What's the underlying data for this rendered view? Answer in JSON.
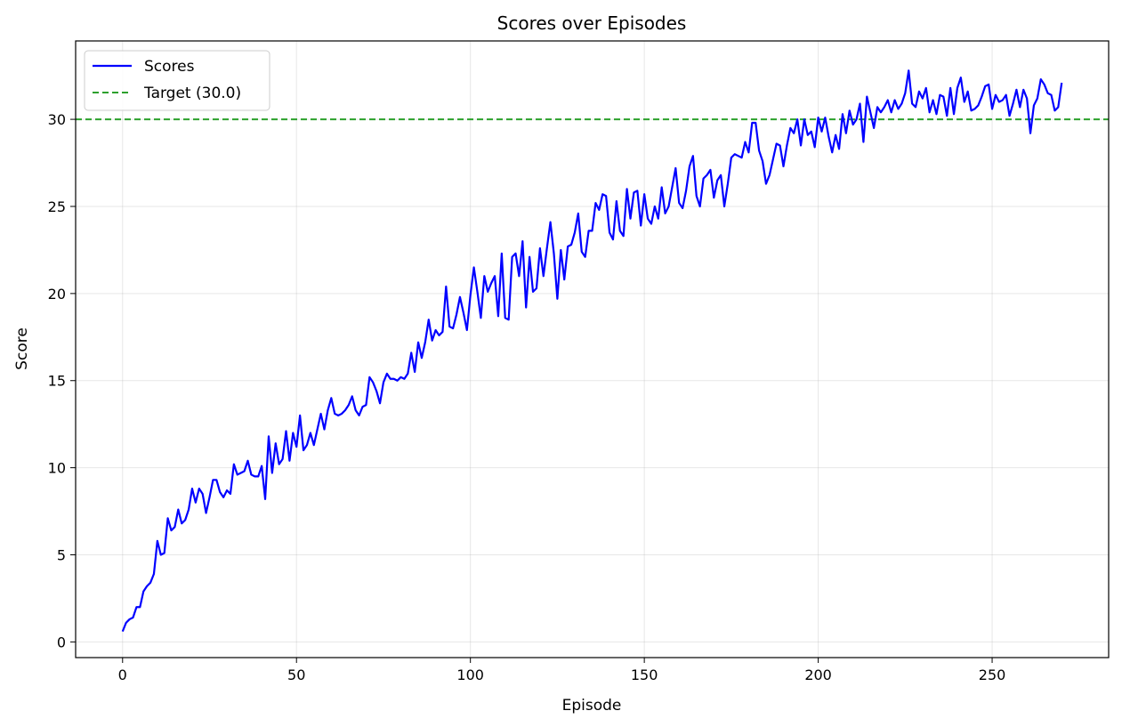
{
  "chart_data": {
    "type": "line",
    "title": "Scores over Episodes",
    "xlabel": "Episode",
    "ylabel": "Score",
    "xlim": [
      -13.5,
      283.5
    ],
    "ylim": [
      -0.9,
      34.5
    ],
    "xticks": [
      0,
      50,
      100,
      150,
      200,
      250
    ],
    "yticks": [
      0,
      5,
      10,
      15,
      20,
      25,
      30
    ],
    "grid": true,
    "legend_position": "upper-left",
    "series": [
      {
        "name": "Scores",
        "color": "#0000ff",
        "x_start": 0,
        "values": [
          0.6,
          1.1,
          1.3,
          1.4,
          2.0,
          2.0,
          2.9,
          3.2,
          3.4,
          3.9,
          5.8,
          5.0,
          5.1,
          7.1,
          6.4,
          6.6,
          7.6,
          6.8,
          7.0,
          7.6,
          8.8,
          8.0,
          8.8,
          8.5,
          7.4,
          8.3,
          9.3,
          9.3,
          8.6,
          8.3,
          8.7,
          8.5,
          10.2,
          9.6,
          9.7,
          9.8,
          10.4,
          9.6,
          9.5,
          9.5,
          10.1,
          8.2,
          11.8,
          9.7,
          11.4,
          10.2,
          10.5,
          12.1,
          10.4,
          12.0,
          11.2,
          13.0,
          11.0,
          11.3,
          12.0,
          11.3,
          12.2,
          13.1,
          12.2,
          13.3,
          14.0,
          13.1,
          13.0,
          13.1,
          13.3,
          13.6,
          14.1,
          13.3,
          13.0,
          13.5,
          13.6,
          15.2,
          14.9,
          14.4,
          13.7,
          14.9,
          15.4,
          15.1,
          15.1,
          15.0,
          15.2,
          15.1,
          15.4,
          16.6,
          15.5,
          17.2,
          16.3,
          17.2,
          18.5,
          17.3,
          17.9,
          17.6,
          17.8,
          20.4,
          18.1,
          18.0,
          18.8,
          19.8,
          18.9,
          17.9,
          19.9,
          21.5,
          20.1,
          18.6,
          21.0,
          20.1,
          20.6,
          21.0,
          18.7,
          22.3,
          18.6,
          18.5,
          22.1,
          22.3,
          21.0,
          23.0,
          19.2,
          22.1,
          20.1,
          20.3,
          22.6,
          21.0,
          22.6,
          24.1,
          22.3,
          19.7,
          22.5,
          20.8,
          22.7,
          22.8,
          23.5,
          24.6,
          22.4,
          22.1,
          23.6,
          23.6,
          25.2,
          24.8,
          25.7,
          25.6,
          23.5,
          23.1,
          25.3,
          23.6,
          23.3,
          26.0,
          24.3,
          25.8,
          25.9,
          23.9,
          25.7,
          24.3,
          24.0,
          25.0,
          24.3,
          26.1,
          24.6,
          25.0,
          26.1,
          27.2,
          25.2,
          24.9,
          25.9,
          27.3,
          27.9,
          25.6,
          25.0,
          26.6,
          26.8,
          27.1,
          25.5,
          26.5,
          26.8,
          25.0,
          26.3,
          27.8,
          28.0,
          27.9,
          27.8,
          28.7,
          28.1,
          29.8,
          29.8,
          28.2,
          27.6,
          26.3,
          26.8,
          27.7,
          28.6,
          28.5,
          27.3,
          28.5,
          29.5,
          29.2,
          30.0,
          28.5,
          30.0,
          29.1,
          29.3,
          28.4,
          30.1,
          29.3,
          30.1,
          29.0,
          28.1,
          29.1,
          28.3,
          30.3,
          29.2,
          30.5,
          29.7,
          30.0,
          30.9,
          28.7,
          31.3,
          30.4,
          29.5,
          30.7,
          30.4,
          30.7,
          31.1,
          30.4,
          31.1,
          30.6,
          30.9,
          31.5,
          32.8,
          30.9,
          30.7,
          31.6,
          31.2,
          31.8,
          30.4,
          31.1,
          30.3,
          31.4,
          31.3,
          30.2,
          31.8,
          30.3,
          31.8,
          32.4,
          31.0,
          31.6,
          30.5,
          30.6,
          30.8,
          31.3,
          31.9,
          32.0,
          30.6,
          31.4,
          31.0,
          31.1,
          31.4,
          30.2,
          30.9,
          31.7,
          30.7,
          31.7,
          31.2,
          29.2,
          30.8,
          31.2,
          32.3,
          32.0,
          31.5,
          31.4,
          30.5,
          30.7,
          32.1
        ]
      }
    ],
    "reference_line": {
      "name": "Target (30.0)",
      "y": 30.0,
      "color": "#2ca02c",
      "style": "dashed"
    }
  }
}
